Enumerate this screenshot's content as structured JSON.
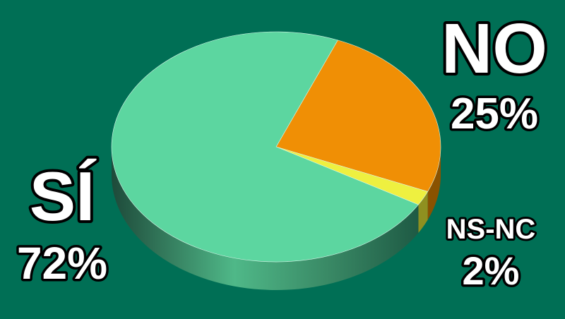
{
  "chart_data": {
    "type": "pie",
    "style": "3d",
    "title": "",
    "background_color": "#006f55",
    "direction": "clockwise",
    "slices": [
      {
        "label": "NO",
        "value_label": "25%",
        "value": 25,
        "color": "#f08f05",
        "side_color": "#8a5200"
      },
      {
        "label": "NS-NC",
        "value_label": "2%",
        "value": 2,
        "color": "#eef040",
        "side_color": "#8f9020"
      },
      {
        "label": "SÍ",
        "value_label": "72%",
        "value": 72,
        "color": "#5cd6a0",
        "side_color": "#2f7a5c"
      }
    ]
  }
}
